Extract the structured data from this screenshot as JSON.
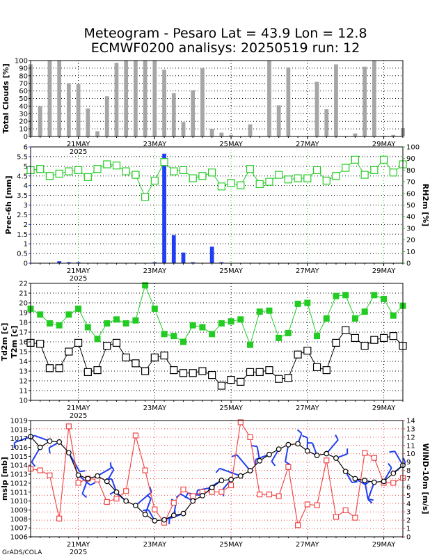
{
  "title": {
    "line1": "Meteogram - Pesaro Lat = 43.9 Lon = 12.8",
    "line2": "ECMWF0200 analisys: 20250519 run: 12"
  },
  "footer": "GrADS/COLA",
  "x_axis": {
    "labels": [
      "21MAY",
      "23MAY",
      "25MAY",
      "27MAY",
      "29MAY"
    ],
    "year_label": "2025"
  },
  "colors": {
    "gray_bar": "#a6a6a6",
    "blue": "#1f3ff0",
    "green": "#22cc22",
    "black": "#000000",
    "red": "#f04848",
    "grid_black": "#000000",
    "grid_green": "#22cc22",
    "grid_red": "#f04848"
  },
  "chart_data": [
    {
      "type": "bar",
      "name": "clouds",
      "ylabel": "Total Clouds [%]",
      "ylim": [
        0,
        100
      ],
      "yticks": [
        0,
        10,
        20,
        30,
        40,
        50,
        60,
        70,
        80,
        90,
        100
      ],
      "grid": true,
      "x": [
        "19MAY 18Z",
        "20MAY 00Z",
        "20MAY 06Z",
        "20MAY 12Z",
        "20MAY 18Z",
        "21MAY 00Z",
        "21MAY 06Z",
        "21MAY 12Z",
        "21MAY 18Z",
        "22MAY 00Z",
        "22MAY 06Z",
        "22MAY 12Z",
        "22MAY 18Z",
        "23MAY 00Z",
        "23MAY 06Z",
        "23MAY 12Z",
        "23MAY 18Z",
        "24MAY 00Z",
        "24MAY 06Z",
        "24MAY 12Z",
        "24MAY 18Z",
        "25MAY 00Z",
        "25MAY 06Z",
        "25MAY 12Z",
        "25MAY 18Z",
        "26MAY 00Z",
        "26MAY 06Z",
        "26MAY 12Z",
        "26MAY 18Z",
        "27MAY 00Z",
        "27MAY 06Z",
        "27MAY 12Z",
        "27MAY 18Z",
        "28MAY 00Z",
        "28MAY 06Z",
        "28MAY 12Z",
        "28MAY 18Z",
        "29MAY 00Z",
        "29MAY 06Z",
        "29MAY 12Z"
      ],
      "values": [
        95,
        40,
        100,
        100,
        70,
        69,
        37,
        7,
        53,
        97,
        100,
        100,
        100,
        100,
        88,
        57,
        19,
        61,
        90,
        10,
        5,
        2,
        0,
        16,
        0,
        100,
        41,
        91,
        0,
        0,
        72,
        36,
        95,
        0,
        4,
        92,
        100,
        1,
        2,
        11
      ]
    },
    {
      "type": "bar+line",
      "name": "precip_rh",
      "ylabel_left": "Prec-6h [mm]",
      "ylabel_right": "RH2m [%]",
      "ylim_left": [
        0,
        6
      ],
      "yticks_left": [
        0,
        0.5,
        1,
        1.5,
        2,
        2.5,
        3,
        3.5,
        4,
        4.5,
        5,
        5.5,
        6
      ],
      "ylim_right": [
        0,
        100
      ],
      "yticks_right": [
        0,
        10,
        20,
        30,
        40,
        50,
        60,
        70,
        80,
        90,
        100
      ],
      "precip_x": [
        "20MAY 12Z",
        "20MAY 18Z",
        "21MAY 00Z",
        "23MAY 00Z",
        "23MAY 06Z",
        "23MAY 12Z",
        "23MAY 18Z",
        "24MAY 00Z",
        "24MAY 12Z",
        "24MAY 18Z"
      ],
      "precip": [
        0.1,
        0.05,
        0.05,
        0.05,
        5.65,
        1.45,
        0.55,
        0.05,
        0.85,
        0.05
      ],
      "rh": [
        80,
        81,
        75,
        77,
        79,
        80,
        74,
        81,
        85,
        84,
        79,
        76,
        57,
        71,
        87,
        79,
        80,
        73,
        75,
        78,
        66,
        69,
        67,
        81,
        68,
        70,
        76,
        72,
        73,
        73,
        80,
        71,
        75,
        82,
        89,
        76,
        80,
        89,
        78,
        85
      ]
    },
    {
      "type": "line",
      "name": "temperature",
      "ylabel": "Td2m [c]",
      "ylabel2": "T2m [c]",
      "ylim": [
        10,
        22
      ],
      "yticks": [
        10,
        11,
        12,
        13,
        14,
        15,
        16,
        17,
        18,
        19,
        20,
        21,
        22
      ],
      "series": [
        {
          "name": "T2m [c]",
          "values": [
            19.4,
            18.8,
            17.9,
            17.7,
            18.8,
            19.4,
            17.5,
            16.3,
            17.9,
            18.3,
            17.9,
            18.2,
            21.8,
            19.4,
            16.8,
            16.6,
            16.0,
            17.7,
            17.5,
            16.8,
            17.9,
            18.1,
            18.3,
            15.7,
            19.1,
            19.2,
            16.4,
            16.9,
            19.9,
            20.0,
            16.6,
            18.4,
            20.7,
            20.8,
            18.4,
            19.1,
            20.8,
            20.4,
            18.7,
            19.7
          ]
        },
        {
          "name": "Td2m [c]",
          "values": [
            15.9,
            15.8,
            13.3,
            13.3,
            15.0,
            15.9,
            12.9,
            13.1,
            15.6,
            15.9,
            14.4,
            13.8,
            13.0,
            14.4,
            14.6,
            13.1,
            12.8,
            12.8,
            13.0,
            12.6,
            11.5,
            12.1,
            11.9,
            12.9,
            12.9,
            13.1,
            12.2,
            12.3,
            14.7,
            15.1,
            13.4,
            13.1,
            15.9,
            17.2,
            16.4,
            15.6,
            16.2,
            16.4,
            16.6,
            15.6
          ]
        }
      ]
    },
    {
      "type": "line",
      "name": "pressure_wind",
      "ylabel_left": "mslp [mb]",
      "ylabel_right": "WIND-10m [m/s]",
      "ylim_left": [
        1006,
        1019
      ],
      "yticks_left": [
        1006,
        1007,
        1008,
        1009,
        1010,
        1011,
        1012,
        1013,
        1014,
        1015,
        1016,
        1017,
        1018,
        1019
      ],
      "ylim_right": [
        0,
        14
      ],
      "yticks_right": [
        0,
        1,
        2,
        3,
        4,
        5,
        6,
        7,
        8,
        9,
        10,
        11,
        12,
        13,
        14
      ],
      "series": [
        {
          "name": "mslp [mb]",
          "values": [
            1017.2,
            1016.0,
            1016.7,
            1016.6,
            1015.4,
            1012.9,
            1012.5,
            1012.8,
            1012.2,
            1011.0,
            1010.0,
            1009.5,
            1008.5,
            1007.8,
            1007.9,
            1008.4,
            1008.6,
            1010.0,
            1010.6,
            1011.5,
            1012.3,
            1012.4,
            1012.8,
            1013.4,
            1014.5,
            1015.2,
            1015.8,
            1016.3,
            1016.4,
            1015.6,
            1015.1,
            1015.3,
            1014.8,
            1013.3,
            1012.5,
            1012.3,
            1012.1,
            1012.2,
            1013.1,
            1014.0
          ]
        },
        {
          "name": "WIND-10m [m/s]",
          "values": [
            8.2,
            8.0,
            7.4,
            2.2,
            13.3,
            6.5,
            7.0,
            6.9,
            4.2,
            4.6,
            5.5,
            12.2,
            8.0,
            3.3,
            1.7,
            4.1,
            5.7,
            4.9,
            5.4,
            5.4,
            5.4,
            6.2,
            13.8,
            12.0,
            5.1,
            5.1,
            4.9,
            8.4,
            1.4,
            3.9,
            3.8,
            9.2,
            2.4,
            3.2,
            2.3,
            10.1,
            9.5,
            6.5,
            6.5,
            7.1
          ]
        }
      ]
    }
  ]
}
